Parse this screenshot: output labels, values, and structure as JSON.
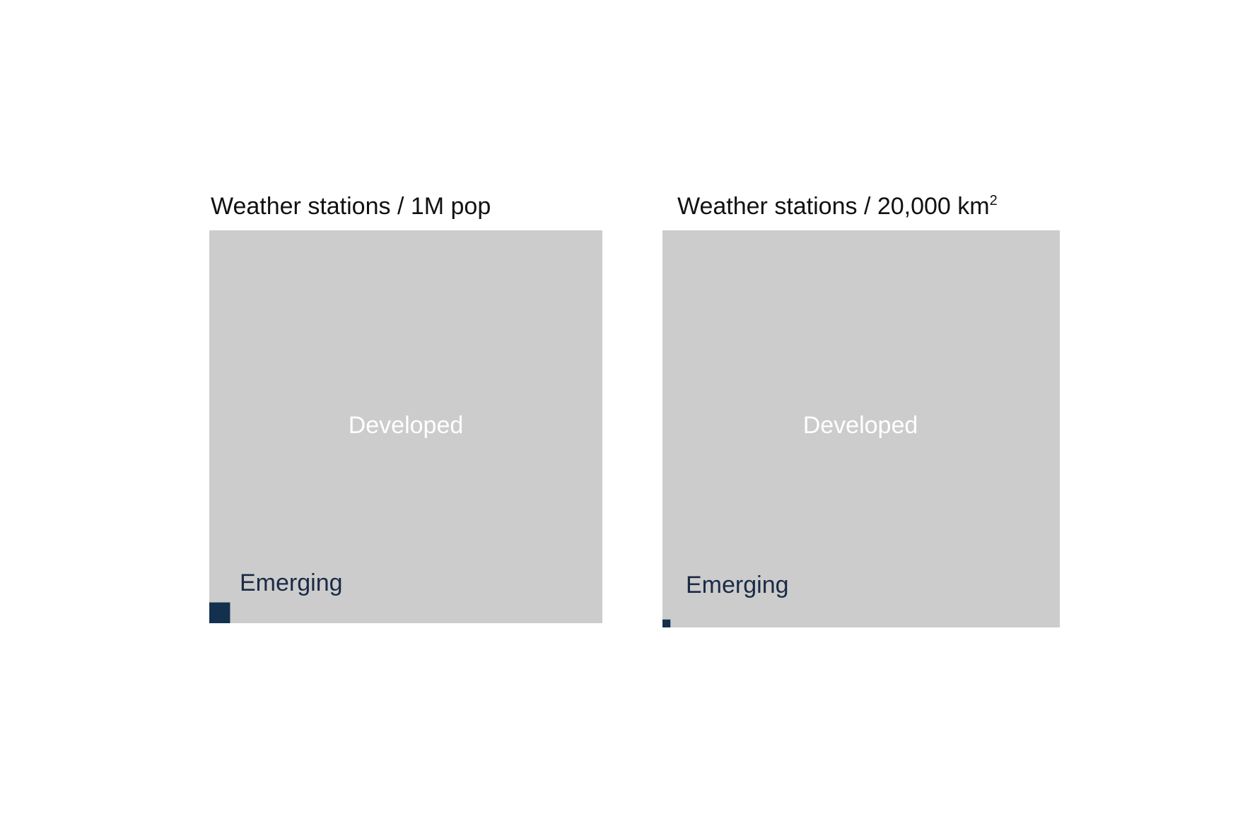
{
  "colors": {
    "developed": "#cccccc",
    "emerging": "#13304f",
    "background": "#ffffff"
  },
  "chart_data": [
    {
      "type": "area-comparison",
      "title": "Weather stations / 1M pop",
      "categories": [
        "Developed",
        "Emerging"
      ],
      "values": [
        1,
        0.0028
      ]
    },
    {
      "type": "area-comparison",
      "title": "Weather stations / 20,000 km",
      "title_superscript": "2",
      "categories": [
        "Developed",
        "Emerging"
      ],
      "values": [
        1,
        0.0004
      ]
    }
  ]
}
